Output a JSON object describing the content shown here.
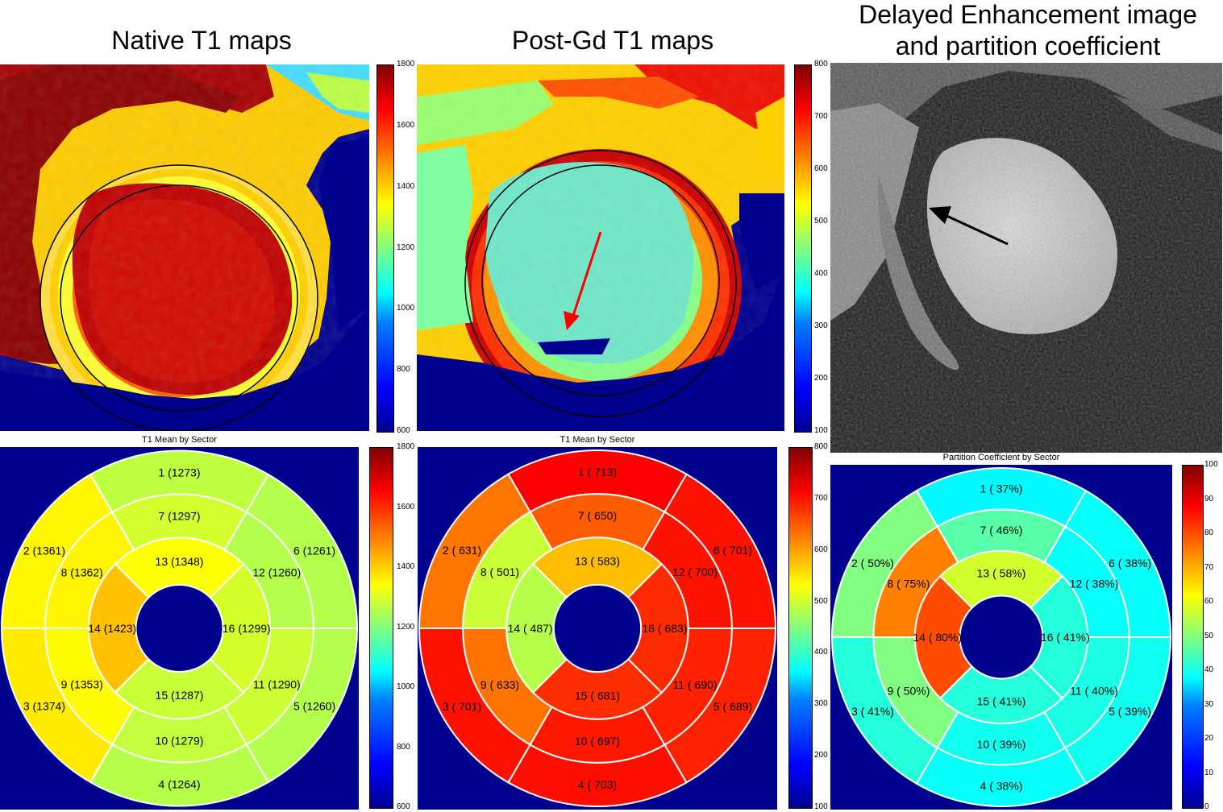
{
  "titles": {
    "native": "Native T1 maps",
    "postgd": "Post-Gd T1 maps",
    "delayed_line1": "Delayed Enhancement image",
    "delayed_line2": "and partition coefficient"
  },
  "colors": {
    "jet_dark_blue": "#00008f",
    "jet_red": "#ff1a00",
    "jet_dark_red": "#8b0000",
    "arrow_red": "#ff0000",
    "arrow_black": "#000000"
  },
  "colorbars": {
    "native_map": {
      "min": 600,
      "max": 1800,
      "ticks": [
        "1800",
        "1600",
        "1400",
        "1200",
        "1000",
        "800",
        "600"
      ]
    },
    "postgd_map": {
      "min": 100,
      "max": 800,
      "ticks": [
        "800",
        "700",
        "600",
        "500",
        "400",
        "300",
        "200",
        "100"
      ]
    },
    "native_bull": {
      "min": 600,
      "max": 1800,
      "ticks": [
        "1800",
        "1600",
        "1400",
        "1200",
        "1000",
        "800",
        "600"
      ]
    },
    "postgd_bull": {
      "min": 100,
      "max": 800,
      "ticks": [
        "800",
        "700",
        "600",
        "500",
        "400",
        "300",
        "200",
        "100"
      ]
    },
    "pc_bull": {
      "min": 0,
      "max": 100,
      "ticks": [
        "100",
        "90",
        "80",
        "70",
        "60",
        "50",
        "40",
        "30",
        "20",
        "10",
        "0"
      ]
    }
  },
  "bullseyes": [
    {
      "id": "native",
      "title": "T1 Mean by Sector",
      "min": 600,
      "max": 1800,
      "labels": [
        "1 (1273)",
        "2 (1361)",
        "3 (1374)",
        "4 (1264)",
        "5 (1260)",
        "6 (1261)",
        "7 (1297)",
        "8 (1362)",
        "9 (1353)",
        "10 (1279)",
        "11 (1290)",
        "12 (1260)",
        "13 (1348)",
        "14 (1423)",
        "15 (1287)",
        "16 (1299)"
      ],
      "values": [
        1273,
        1361,
        1374,
        1264,
        1260,
        1261,
        1297,
        1362,
        1353,
        1279,
        1290,
        1260,
        1348,
        1423,
        1287,
        1299
      ]
    },
    {
      "id": "postgd",
      "title": "T1 Mean by Sector",
      "min": 100,
      "max": 800,
      "labels": [
        "1 ( 713)",
        "2 ( 631)",
        "3 ( 701)",
        "4 ( 703)",
        "5 ( 689)",
        "6 ( 701)",
        "7 ( 650)",
        "8 ( 501)",
        "9 ( 633)",
        "10 ( 697)",
        "11 ( 690)",
        "12 ( 700)",
        "13 ( 583)",
        "14 ( 487)",
        "15 ( 681)",
        "16 ( 683)"
      ],
      "values": [
        713,
        631,
        701,
        703,
        689,
        701,
        650,
        501,
        633,
        697,
        690,
        700,
        583,
        487,
        681,
        683
      ]
    },
    {
      "id": "pc",
      "title": "Partition Coefficient by Sector",
      "min": 0,
      "max": 100,
      "labels": [
        "1 ( 37%)",
        "2 ( 50%)",
        "3 ( 41%)",
        "4 ( 38%)",
        "5 ( 39%)",
        "6 ( 38%)",
        "7 ( 46%)",
        "8 ( 75%)",
        "9 ( 50%)",
        "10 ( 39%)",
        "11 ( 40%)",
        "12 ( 38%)",
        "13 ( 58%)",
        "14 ( 80%)",
        "15 ( 41%)",
        "16 ( 41%)"
      ],
      "values": [
        37,
        50,
        41,
        38,
        39,
        38,
        46,
        75,
        50,
        39,
        40,
        38,
        58,
        80,
        41,
        41
      ]
    }
  ]
}
